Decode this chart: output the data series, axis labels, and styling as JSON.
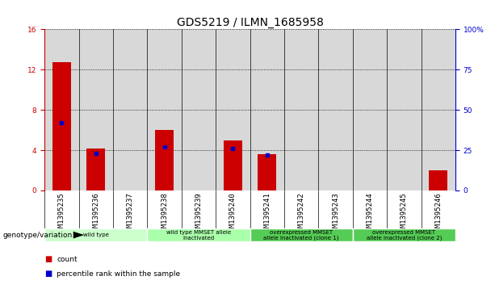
{
  "title": "GDS5219 / ILMN_1685958",
  "samples": [
    "GSM1395235",
    "GSM1395236",
    "GSM1395237",
    "GSM1395238",
    "GSM1395239",
    "GSM1395240",
    "GSM1395241",
    "GSM1395242",
    "GSM1395243",
    "GSM1395244",
    "GSM1395245",
    "GSM1395246"
  ],
  "counts": [
    12.7,
    4.2,
    0.0,
    6.0,
    0.0,
    5.0,
    3.6,
    0.0,
    0.0,
    0.0,
    0.0,
    2.0
  ],
  "percentile_ranks_left_scale": [
    6.7,
    3.7,
    0.0,
    4.3,
    0.0,
    4.2,
    3.5,
    0.0,
    0.0,
    0.0,
    0.0,
    0.0
  ],
  "ylim_left": [
    0,
    16
  ],
  "ylim_right": [
    0,
    100
  ],
  "yticks_left": [
    0,
    4,
    8,
    12,
    16
  ],
  "yticks_right": [
    0,
    25,
    50,
    75,
    100
  ],
  "yticklabels_right": [
    "0",
    "25",
    "50",
    "75",
    "100%"
  ],
  "bar_color": "#cc0000",
  "percentile_color": "#0000cc",
  "col_bg_color": "#d8d8d8",
  "left_axis_color": "#cc0000",
  "right_axis_color": "#0000cc",
  "genotype_groups": [
    {
      "label": "wild type",
      "start": 0,
      "end": 2,
      "color": "#ccffcc"
    },
    {
      "label": "wild type MMSET allele\ninactivated",
      "start": 3,
      "end": 5,
      "color": "#aaffaa"
    },
    {
      "label": "overexpressed MMSET\nallele inactivated (clone 1)",
      "start": 6,
      "end": 8,
      "color": "#55cc55"
    },
    {
      "label": "overexpressed MMSET\nallele inactivated (clone 2)",
      "start": 9,
      "end": 11,
      "color": "#55cc55"
    }
  ],
  "genotype_label": "genotype/variation",
  "legend_count_label": "count",
  "legend_percentile_label": "percentile rank within the sample",
  "title_fontsize": 10,
  "tick_fontsize": 6.5,
  "annot_fontsize": 6.5,
  "bar_width": 0.55
}
